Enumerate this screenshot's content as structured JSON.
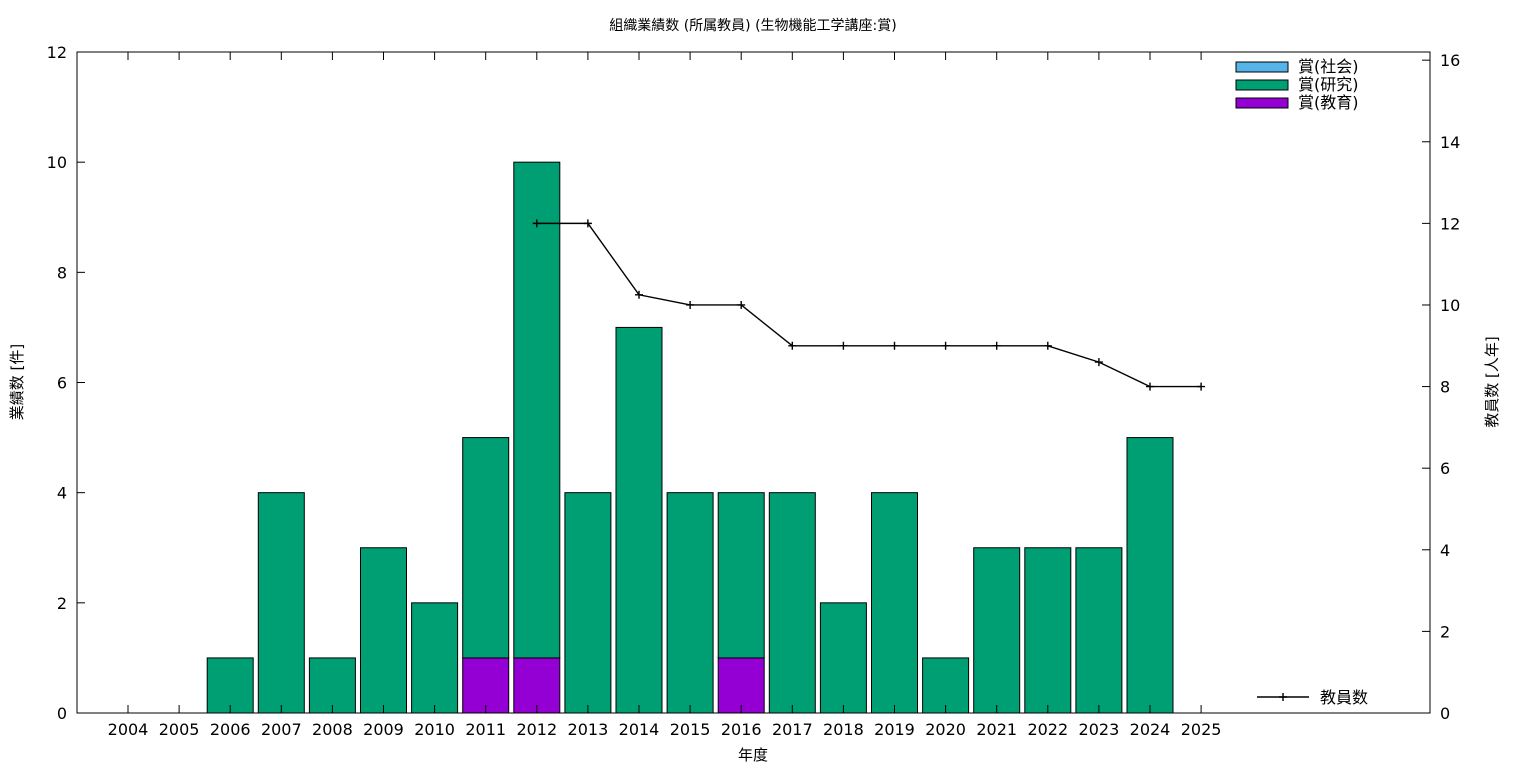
{
  "chart_data": {
    "type": "bar",
    "title": "組織業績数 (所属教員) (生物機能工学講座:賞)",
    "xlabel": "年度",
    "ylabel": "業績数 [件]",
    "y2label": "教員数 [人年]",
    "categories": [
      "2004",
      "2005",
      "2006",
      "2007",
      "2008",
      "2009",
      "2010",
      "2011",
      "2012",
      "2013",
      "2014",
      "2015",
      "2016",
      "2017",
      "2018",
      "2019",
      "2020",
      "2021",
      "2022",
      "2023",
      "2024",
      "2025"
    ],
    "stacked": true,
    "series": [
      {
        "name": "賞(社会)",
        "color": "#56b4e9",
        "values": [
          0,
          0,
          0,
          0,
          0,
          0,
          0,
          0,
          0,
          0,
          0,
          0,
          0,
          0,
          0,
          0,
          0,
          0,
          0,
          0,
          0,
          0
        ]
      },
      {
        "name": "賞(研究)",
        "color": "#009e73",
        "values": [
          0,
          0,
          1,
          4,
          1,
          3,
          2,
          4,
          9,
          4,
          7,
          4,
          3,
          4,
          2,
          4,
          1,
          3,
          3,
          3,
          5,
          0
        ]
      },
      {
        "name": "賞(教育)",
        "color": "#9400d3",
        "values": [
          0,
          0,
          0,
          0,
          0,
          0,
          0,
          1,
          1,
          0,
          0,
          0,
          1,
          0,
          0,
          0,
          0,
          0,
          0,
          0,
          0,
          0
        ]
      }
    ],
    "line_series": {
      "name": "教員数",
      "axis": "right",
      "color": "#000000",
      "x": [
        "2012",
        "2013",
        "2014",
        "2015",
        "2016",
        "2017",
        "2018",
        "2019",
        "2020",
        "2021",
        "2022",
        "2023",
        "2024",
        "2025"
      ],
      "values": [
        12,
        12,
        10.25,
        10,
        10,
        9,
        9,
        9,
        9,
        9,
        9,
        8.6,
        8,
        8
      ]
    },
    "ylim": [
      0,
      12
    ],
    "y_ticks": [
      0,
      2,
      4,
      6,
      8,
      10,
      12
    ],
    "y2lim": [
      0,
      16.2
    ],
    "y2_ticks": [
      0,
      2,
      4,
      6,
      8,
      10,
      12,
      14,
      16
    ],
    "legend_position": "top-right",
    "line_legend_position": "bottom-right",
    "grid": false
  }
}
